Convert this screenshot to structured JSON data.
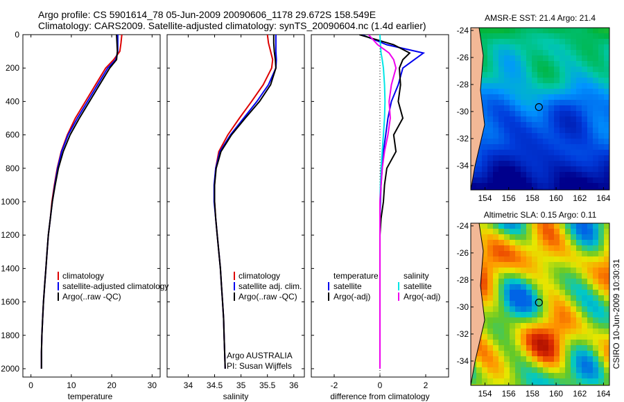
{
  "title_line1": "Argo profile: CS 5901614_78 05-Jun-2009 20090606_1178 29.672S 158.549E",
  "title_line2": "Climatology: CARS2009. Satellite-adjusted climatology: synTS_20090604.nc (1.4d earlier)",
  "vertical_stamp": "CSIRO 10-Jun-2009 10:30:31",
  "colors": {
    "climatology": "#dd0000",
    "satellite": "#0000ee",
    "argo": "#000000",
    "satellite_diff": "#00e6e6",
    "argo_diff": "#ee00ee"
  },
  "chart_data": [
    {
      "type": "line",
      "xlabel": "temperature",
      "xlim": [
        -2,
        32
      ],
      "ylim": [
        0,
        2050
      ],
      "y_reversed": true,
      "xticks": [
        "0",
        "10",
        "20",
        "30"
      ],
      "yticks": [
        "0",
        "200",
        "400",
        "600",
        "800",
        "1000",
        "1200",
        "1400",
        "1600",
        "1800",
        "2000"
      ],
      "legend": [
        "climatology",
        "satellite-adjusted climatology",
        "Argo(..raw -QC)"
      ],
      "series": [
        {
          "name": "climatology",
          "x": [
            22.5,
            22.3,
            22.0,
            20.5,
            18.5,
            16.0,
            13.5,
            11.0,
            9.0,
            7.5,
            6.5,
            5.8,
            5.2,
            4.8,
            4.3,
            4.0,
            3.7,
            3.4,
            3.1,
            2.9,
            2.7,
            2.6,
            2.6
          ],
          "y": [
            0,
            50,
            100,
            150,
            200,
            300,
            400,
            500,
            600,
            700,
            800,
            900,
            1000,
            1100,
            1200,
            1300,
            1400,
            1500,
            1600,
            1700,
            1800,
            1900,
            2000
          ]
        },
        {
          "name": "satellite-adjusted climatology",
          "x": [
            21.5,
            21.5,
            21.5,
            21.0,
            19.0,
            16.5,
            14.0,
            11.5,
            9.2,
            7.6,
            6.6,
            5.9,
            5.3,
            4.8,
            4.3,
            4.0,
            3.7,
            3.4,
            3.1,
            2.9,
            2.7,
            2.6,
            2.6
          ],
          "y": [
            0,
            50,
            100,
            150,
            200,
            300,
            400,
            500,
            600,
            700,
            800,
            900,
            1000,
            1100,
            1200,
            1300,
            1400,
            1500,
            1600,
            1700,
            1800,
            1900,
            2000
          ]
        },
        {
          "name": "Argo(..raw -QC)",
          "x": [
            21.2,
            21.3,
            21.4,
            21.2,
            19.5,
            17.0,
            14.5,
            12.0,
            9.7,
            8.0,
            6.8,
            6.0,
            5.3,
            4.8,
            4.3,
            4.0,
            3.7,
            3.4,
            3.1,
            2.9,
            2.7,
            2.6,
            2.6
          ],
          "y": [
            0,
            50,
            100,
            150,
            200,
            300,
            400,
            500,
            600,
            700,
            800,
            900,
            1000,
            1100,
            1200,
            1300,
            1400,
            1500,
            1600,
            1700,
            1800,
            1900,
            2000
          ]
        }
      ]
    },
    {
      "type": "line",
      "xlabel": "salinity",
      "xlim": [
        33.6,
        36.2
      ],
      "ylim": [
        0,
        2050
      ],
      "y_reversed": true,
      "xticks": [
        "34",
        "34.5",
        "35",
        "35.5",
        "36"
      ],
      "legend": [
        "climatology",
        "satellite adj. clim.",
        "Argo(..raw -QC)"
      ],
      "annotation_line1": "Argo AUSTRALIA",
      "annotation_line2": "PI: Susan Wijffels",
      "series": [
        {
          "name": "climatology",
          "x": [
            35.5,
            35.52,
            35.56,
            35.6,
            35.58,
            35.42,
            35.2,
            34.97,
            34.75,
            34.58,
            34.52,
            34.5,
            34.5,
            34.52,
            34.55,
            34.58,
            34.61,
            34.63,
            34.65,
            34.67,
            34.68,
            34.69,
            34.7
          ],
          "y": [
            0,
            50,
            100,
            150,
            200,
            300,
            400,
            500,
            600,
            700,
            800,
            900,
            1000,
            1100,
            1200,
            1300,
            1400,
            1500,
            1600,
            1700,
            1800,
            1900,
            2000
          ]
        },
        {
          "name": "satellite adj. clim.",
          "x": [
            35.66,
            35.66,
            35.66,
            35.67,
            35.66,
            35.52,
            35.3,
            35.05,
            34.8,
            34.6,
            34.52,
            34.49,
            34.49,
            34.52,
            34.55,
            34.58,
            34.61,
            34.63,
            34.65,
            34.67,
            34.68,
            34.69,
            34.7
          ],
          "y": [
            0,
            50,
            100,
            150,
            200,
            300,
            400,
            500,
            600,
            700,
            800,
            900,
            1000,
            1100,
            1200,
            1300,
            1400,
            1500,
            1600,
            1700,
            1800,
            1900,
            2000
          ]
        },
        {
          "name": "Argo(..raw -QC)",
          "x": [
            35.62,
            35.62,
            35.63,
            35.65,
            35.66,
            35.56,
            35.35,
            35.08,
            34.82,
            34.62,
            34.53,
            34.5,
            34.5,
            34.52,
            34.55,
            34.58,
            34.61,
            34.63,
            34.65,
            34.67,
            34.68,
            34.69,
            34.7
          ],
          "y": [
            0,
            50,
            100,
            150,
            200,
            300,
            400,
            500,
            600,
            700,
            800,
            900,
            1000,
            1100,
            1200,
            1300,
            1400,
            1500,
            1600,
            1700,
            1800,
            1900,
            2000
          ]
        }
      ]
    },
    {
      "type": "line",
      "xlabel": "difference from climatology",
      "xlim": [
        -3,
        3
      ],
      "ylim": [
        0,
        2050
      ],
      "y_reversed": true,
      "xticks": [
        "-2",
        "0",
        "2"
      ],
      "legend_temperature_heading": "temperature",
      "legend_salinity_heading": "salinity",
      "legend_temperature": [
        "satellite",
        "Argo(-adj)"
      ],
      "legend_salinity": [
        "satellite",
        "Argo(-adj)"
      ],
      "series": [
        {
          "name": "satellite",
          "variable": "temperature",
          "x": [
            -0.8,
            0.3,
            1.9,
            1.5,
            1.0,
            0.8,
            0.5,
            0.35,
            0.25,
            0.15,
            0.1,
            0.05,
            0.02,
            0.0,
            0.0,
            0.0,
            0.0,
            0.0,
            0.0,
            0.0,
            0.0,
            0.0
          ],
          "y": [
            0,
            60,
            110,
            150,
            200,
            300,
            400,
            500,
            600,
            700,
            800,
            900,
            1000,
            1100,
            1200,
            1300,
            1400,
            1600,
            1700,
            1800,
            1900,
            2000
          ]
        },
        {
          "name": "Argo(-adj)",
          "variable": "temperature",
          "x": [
            -0.9,
            0.6,
            1.3,
            1.0,
            0.85,
            0.9,
            0.8,
            1.0,
            0.6,
            0.7,
            0.3,
            0.2,
            0.15,
            0.05,
            0.0,
            0.0,
            0.0,
            0.0,
            0.0,
            0.0,
            0.0,
            0.0
          ],
          "y": [
            0,
            60,
            110,
            150,
            200,
            300,
            400,
            500,
            600,
            700,
            800,
            900,
            1000,
            1100,
            1200,
            1300,
            1400,
            1600,
            1700,
            1800,
            1900,
            2000
          ]
        },
        {
          "name": "satellite",
          "variable": "salinity",
          "x": [
            0.0,
            0.02,
            0.05,
            0.1,
            0.15,
            0.2,
            0.22,
            0.2,
            0.15,
            0.1,
            0.05,
            0.02,
            0.0,
            0.0,
            0.0,
            0.0,
            0.0,
            0.0,
            0.0,
            0.0,
            0.0,
            0.0
          ],
          "y": [
            0,
            60,
            110,
            150,
            200,
            300,
            400,
            500,
            600,
            700,
            800,
            900,
            1000,
            1100,
            1200,
            1300,
            1400,
            1600,
            1700,
            1800,
            1900,
            2000
          ]
        },
        {
          "name": "Argo(-adj)",
          "variable": "salinity",
          "x": [
            -0.5,
            -0.1,
            0.4,
            0.6,
            0.7,
            0.5,
            0.4,
            0.45,
            0.35,
            0.2,
            0.1,
            0.05,
            0.0,
            0.0,
            0.0,
            0.0,
            0.0,
            0.0,
            0.0,
            0.0,
            0.0,
            0.0
          ],
          "y": [
            0,
            60,
            110,
            150,
            200,
            300,
            400,
            500,
            600,
            700,
            800,
            900,
            1000,
            1100,
            1200,
            1300,
            1400,
            1600,
            1700,
            1800,
            1900,
            2000
          ]
        }
      ]
    },
    {
      "type": "heatmap",
      "title": "AMSR-E SST: 21.4 Argo: 21.4",
      "xticks": [
        "154",
        "156",
        "158",
        "160",
        "162",
        "164"
      ],
      "yticks": [
        "-24",
        "-26",
        "-28",
        "-30",
        "-32",
        "-34"
      ],
      "xlim": [
        152.8,
        164.5
      ],
      "ylim": [
        -35.8,
        -23.8
      ],
      "marker_lon": 158.55,
      "marker_lat": -29.67
    },
    {
      "type": "heatmap",
      "title": "Altimetric SLA: 0.15 Argo: 0.11",
      "xticks": [
        "154",
        "156",
        "158",
        "160",
        "162",
        "164"
      ],
      "yticks": [
        "-24",
        "-26",
        "-28",
        "-30",
        "-32",
        "-34"
      ],
      "xlim": [
        152.8,
        164.5
      ],
      "ylim": [
        -35.8,
        -23.8
      ],
      "marker_lon": 158.55,
      "marker_lat": -29.67
    }
  ]
}
